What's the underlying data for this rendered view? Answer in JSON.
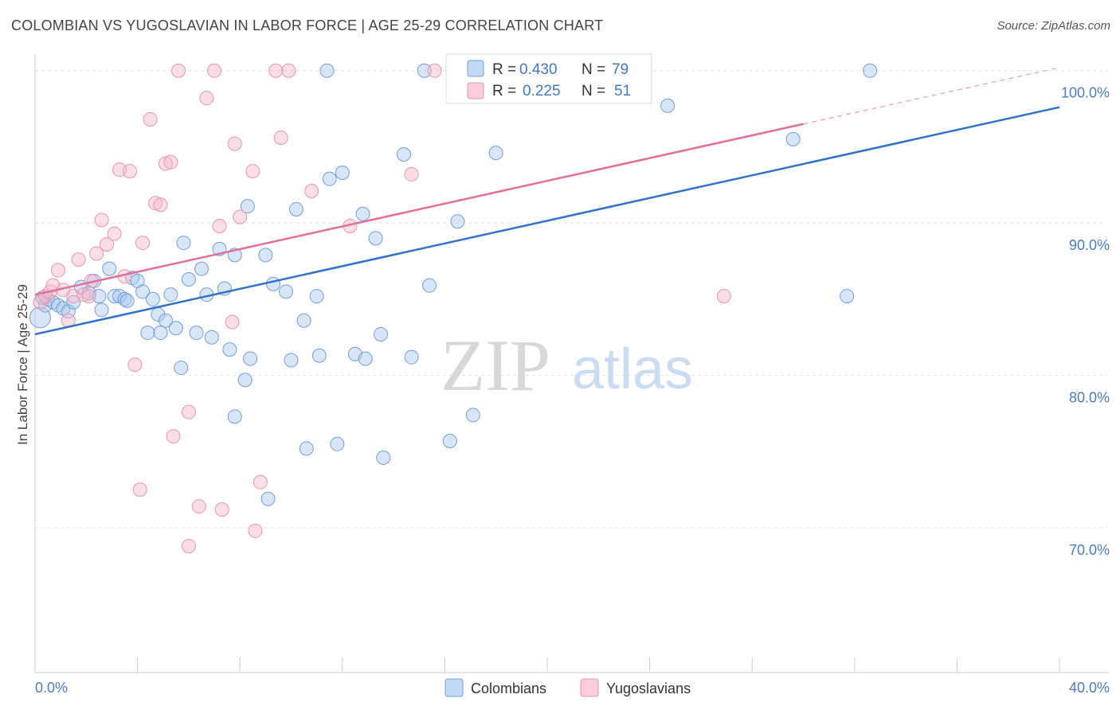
{
  "title": "COLOMBIAN VS YUGOSLAVIAN IN LABOR FORCE | AGE 25-29 CORRELATION CHART",
  "source": "Source: ZipAtlas.com",
  "watermark": {
    "zip": "ZIP",
    "atlas": "atlas"
  },
  "colors": {
    "blue_fill": "#a9c7ee",
    "blue_stroke": "#6f9fdc",
    "blue_line": "#2f72c9",
    "pink_fill": "#f6b8cb",
    "pink_stroke": "#e894ae",
    "pink_line": "#e0709a",
    "grid": "#e4e4e4",
    "axis_text": "#4a7cc7"
  },
  "legend": {
    "r_label": "R =",
    "n_label": "N =",
    "items": [
      {
        "r": "0.430",
        "n": "79"
      },
      {
        "r": "0.225",
        "n": "51"
      }
    ]
  },
  "chart_data": {
    "type": "scatter",
    "ylabel": "In Labor Force | Age 25-29",
    "xlim": [
      0,
      40
    ],
    "ylim": [
      60.5,
      101.5
    ],
    "x_ticks": [
      0,
      4,
      8,
      12,
      16,
      20,
      24,
      28,
      32,
      36,
      40
    ],
    "x_tick_labels": [
      {
        "value": 0,
        "label": "0.0%"
      },
      {
        "value": 40,
        "label": "40.0%"
      }
    ],
    "y_ticks": [
      {
        "value": 70,
        "label": "70.0%"
      },
      {
        "value": 80,
        "label": "80.0%"
      },
      {
        "value": 90,
        "label": "90.0%"
      },
      {
        "value": 100,
        "label": "100.0%"
      }
    ],
    "grid": true,
    "series": [
      {
        "name": "Colombians",
        "trend": {
          "x": [
            0,
            40
          ],
          "y": [
            82.7,
            97.6
          ]
        },
        "points": [
          [
            0.2,
            83.8
          ],
          [
            0.4,
            84.6
          ],
          [
            0.5,
            85.0
          ],
          [
            0.7,
            84.8
          ],
          [
            0.9,
            84.6
          ],
          [
            1.1,
            84.4
          ],
          [
            1.3,
            84.2
          ],
          [
            1.5,
            84.8
          ],
          [
            1.8,
            85.8
          ],
          [
            2.1,
            85.4
          ],
          [
            2.3,
            86.2
          ],
          [
            2.5,
            85.2
          ],
          [
            2.6,
            84.3
          ],
          [
            2.9,
            87.0
          ],
          [
            3.1,
            85.2
          ],
          [
            3.3,
            85.2
          ],
          [
            3.5,
            85.0
          ],
          [
            3.6,
            84.9
          ],
          [
            3.8,
            86.4
          ],
          [
            4.0,
            86.2
          ],
          [
            4.2,
            85.5
          ],
          [
            4.4,
            82.8
          ],
          [
            4.6,
            85.0
          ],
          [
            4.8,
            84.0
          ],
          [
            4.9,
            82.8
          ],
          [
            5.1,
            83.6
          ],
          [
            5.3,
            85.3
          ],
          [
            5.5,
            83.1
          ],
          [
            5.7,
            80.5
          ],
          [
            5.8,
            88.7
          ],
          [
            6.0,
            86.3
          ],
          [
            6.3,
            82.8
          ],
          [
            6.5,
            87.0
          ],
          [
            6.7,
            85.3
          ],
          [
            6.9,
            82.5
          ],
          [
            7.2,
            88.3
          ],
          [
            7.4,
            85.7
          ],
          [
            7.6,
            81.7
          ],
          [
            7.8,
            87.9
          ],
          [
            7.8,
            77.3
          ],
          [
            8.2,
            79.7
          ],
          [
            8.3,
            91.1
          ],
          [
            8.4,
            81.1
          ],
          [
            9.0,
            87.9
          ],
          [
            9.1,
            71.9
          ],
          [
            9.3,
            86.0
          ],
          [
            9.8,
            85.5
          ],
          [
            10.0,
            81.0
          ],
          [
            10.2,
            90.9
          ],
          [
            10.5,
            83.6
          ],
          [
            10.6,
            75.2
          ],
          [
            11.0,
            85.2
          ],
          [
            11.1,
            81.3
          ],
          [
            11.4,
            100.0
          ],
          [
            11.5,
            92.9
          ],
          [
            11.8,
            75.5
          ],
          [
            12.0,
            93.3
          ],
          [
            12.5,
            81.4
          ],
          [
            12.8,
            90.6
          ],
          [
            12.9,
            81.1
          ],
          [
            13.3,
            89.0
          ],
          [
            13.5,
            82.7
          ],
          [
            13.6,
            74.6
          ],
          [
            14.4,
            94.5
          ],
          [
            14.7,
            81.2
          ],
          [
            15.2,
            100.0
          ],
          [
            15.4,
            85.9
          ],
          [
            16.2,
            75.7
          ],
          [
            16.5,
            90.1
          ],
          [
            16.9,
            100.0
          ],
          [
            17.1,
            77.4
          ],
          [
            18.0,
            94.6
          ],
          [
            22.2,
            100.0
          ],
          [
            22.6,
            100.0
          ],
          [
            24.7,
            97.7
          ],
          [
            29.6,
            95.5
          ],
          [
            31.7,
            85.2
          ],
          [
            32.6,
            100.0
          ],
          [
            0.3,
            85.1
          ]
        ]
      },
      {
        "name": "Yugoslavians",
        "trend": {
          "x": [
            0,
            30
          ],
          "y": [
            85.3,
            96.5
          ]
        },
        "trend_dashed": {
          "x": [
            30,
            40
          ],
          "y": [
            96.5,
            100.2
          ]
        },
        "points": [
          [
            0.2,
            84.8
          ],
          [
            0.4,
            85.2
          ],
          [
            0.6,
            85.5
          ],
          [
            0.7,
            85.9
          ],
          [
            0.9,
            86.9
          ],
          [
            1.1,
            85.6
          ],
          [
            1.3,
            83.6
          ],
          [
            1.5,
            85.2
          ],
          [
            1.7,
            87.6
          ],
          [
            1.9,
            85.3
          ],
          [
            2.1,
            85.2
          ],
          [
            2.4,
            88.0
          ],
          [
            2.6,
            90.2
          ],
          [
            2.8,
            88.6
          ],
          [
            3.1,
            89.3
          ],
          [
            3.3,
            93.5
          ],
          [
            3.5,
            86.5
          ],
          [
            3.7,
            93.4
          ],
          [
            3.9,
            80.7
          ],
          [
            4.1,
            72.5
          ],
          [
            4.2,
            88.7
          ],
          [
            4.5,
            96.8
          ],
          [
            4.7,
            91.3
          ],
          [
            4.9,
            91.2
          ],
          [
            5.1,
            93.9
          ],
          [
            5.3,
            94.0
          ],
          [
            5.4,
            76.0
          ],
          [
            5.6,
            100.0
          ],
          [
            6.0,
            77.6
          ],
          [
            6.0,
            68.8
          ],
          [
            6.4,
            71.4
          ],
          [
            6.7,
            98.2
          ],
          [
            7.0,
            100.0
          ],
          [
            7.2,
            89.8
          ],
          [
            7.3,
            71.2
          ],
          [
            7.7,
            83.5
          ],
          [
            7.8,
            95.2
          ],
          [
            8.0,
            90.4
          ],
          [
            8.5,
            93.4
          ],
          [
            8.6,
            69.8
          ],
          [
            8.8,
            73.0
          ],
          [
            9.4,
            100.0
          ],
          [
            9.6,
            95.6
          ],
          [
            9.9,
            100.0
          ],
          [
            10.8,
            92.1
          ],
          [
            12.3,
            89.8
          ],
          [
            14.7,
            93.2
          ],
          [
            15.6,
            100.0
          ],
          [
            23.1,
            100.0
          ],
          [
            26.9,
            85.2
          ],
          [
            2.2,
            86.2
          ]
        ]
      }
    ]
  }
}
